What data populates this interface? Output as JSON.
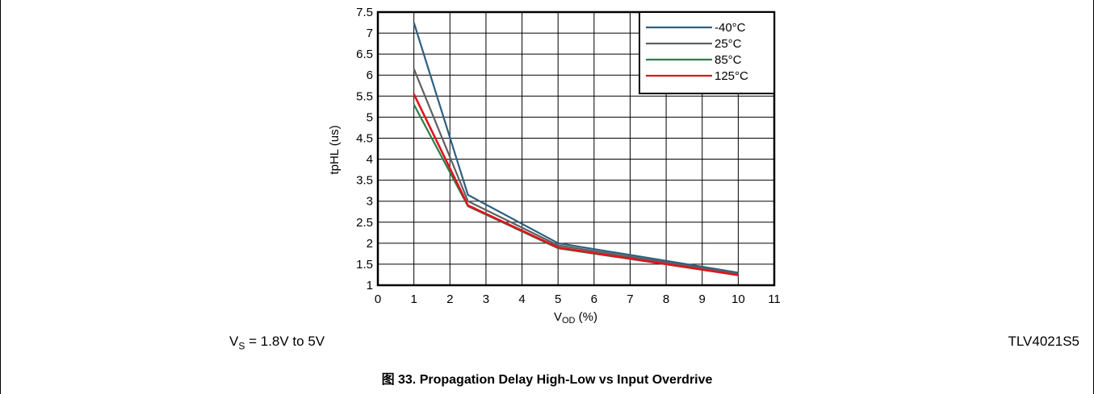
{
  "footnote_left": {
    "prefix": "V",
    "sub": "S",
    "suffix": " = 1.8V to 5V"
  },
  "footnote_right": "TLV4021S5",
  "caption": "图 33. Propagation Delay High-Low vs Input Overdrive",
  "chart_data": {
    "type": "line",
    "title": "",
    "xlabel": {
      "main": "V",
      "sub": "OD",
      "unit": " (%)"
    },
    "ylabel": "tpHL (us)",
    "xlim": [
      0,
      11
    ],
    "ylim": [
      1,
      7.5
    ],
    "xticks": [
      0,
      1,
      2,
      3,
      4,
      5,
      6,
      7,
      8,
      9,
      10,
      11
    ],
    "yticks": [
      1,
      1.5,
      2,
      2.5,
      3,
      3.5,
      4,
      4.5,
      5,
      5.5,
      6,
      6.5,
      7,
      7.5
    ],
    "ytick_labels": [
      "1",
      "1.5",
      "2",
      "2.5",
      "3",
      "3.5",
      "4",
      "4.5",
      "5",
      "5.5",
      "6",
      "6.5",
      "7",
      "7.5"
    ],
    "grid": true,
    "legend_position": "top-right",
    "x": [
      1,
      2.5,
      5,
      10
    ],
    "series": [
      {
        "name": "-40°C",
        "color": "#2e5f7f",
        "values": [
          7.25,
          3.15,
          2.0,
          1.3
        ]
      },
      {
        "name": "25°C",
        "color": "#606060",
        "values": [
          6.15,
          3.0,
          1.95,
          1.27
        ]
      },
      {
        "name": "85°C",
        "color": "#2e7d4b",
        "values": [
          5.3,
          2.88,
          1.88,
          1.24
        ]
      },
      {
        "name": "125°C",
        "color": "#e0141e",
        "values": [
          5.55,
          2.9,
          1.9,
          1.24
        ]
      }
    ]
  }
}
